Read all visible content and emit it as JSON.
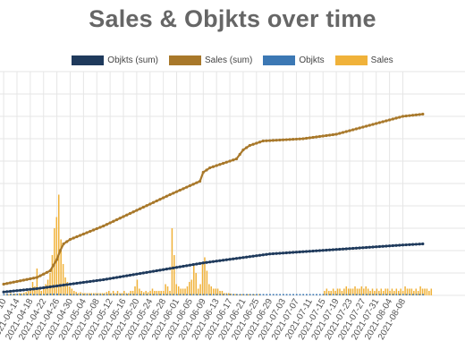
{
  "title": "Sales & Objkts over time",
  "colors": {
    "objkts_sum": "#1f3a5c",
    "sales_sum": "#a8782a",
    "objkts": "#3c78b4",
    "sales": "#f0b23a",
    "grid": "#e6e6e6",
    "tick": "#555555"
  },
  "chart_data": {
    "type": "line",
    "title": "Sales & Objkts over time",
    "legend": [
      "Objkts (sum)",
      "Sales (sum)",
      "Objkts",
      "Sales"
    ],
    "legend_position": "top-center",
    "grid": true,
    "x_start": "2021-04-10",
    "x_tick_labels": [
      "10",
      "2021-04-14",
      "2021-04-18",
      "2021-04-22",
      "2021-04-26",
      "2021-04-30",
      "2021-05-04",
      "2021-05-08",
      "2021-05-12",
      "2021-05-16",
      "2021-05-20",
      "2021-05-24",
      "2021-05-28",
      "2021-06-01",
      "2021-06-05",
      "2021-06-09",
      "2021-06-13",
      "2021-06-17",
      "2021-06-21",
      "2021-06-25",
      "2021-06-29",
      "2021-07-03",
      "2021-07-07",
      "2021-07-11",
      "2021-07-15",
      "2021-07-19",
      "2021-07-23",
      "2021-07-27",
      "2021-07-31",
      "2021-08-04",
      "2021-08-08"
    ],
    "y_range": [
      0,
      100
    ],
    "series": [
      {
        "name": "Objkts (sum)",
        "kind": "line",
        "days": [
          0,
          10,
          20,
          30,
          40,
          50,
          60,
          70,
          80,
          90,
          100,
          110,
          120,
          126
        ],
        "values": [
          1.5,
          3,
          5,
          7,
          9.5,
          12,
          14.5,
          16.5,
          18.5,
          19.5,
          20.5,
          21.5,
          22.5,
          23
        ]
      },
      {
        "name": "Sales (sum)",
        "kind": "line",
        "days": [
          0,
          10,
          14,
          16,
          17,
          18,
          20,
          30,
          40,
          50,
          59,
          60,
          62,
          70,
          72,
          74,
          78,
          90,
          100,
          110,
          120,
          126
        ],
        "values": [
          5,
          8,
          11,
          16,
          20,
          23,
          25,
          31,
          38,
          45,
          51,
          55,
          57,
          61,
          65,
          67,
          69,
          70,
          72,
          76,
          80,
          81
        ]
      },
      {
        "name": "Objkts",
        "kind": "bar",
        "values": [
          0.6,
          0.6,
          0.6,
          0.7,
          0.7,
          0.6,
          0.6,
          0.7,
          0.7,
          0.6,
          0.6,
          0.6,
          0.6,
          0.7,
          0.8,
          0.8,
          0.8,
          0.7,
          0.6,
          0.6,
          0.6,
          0.6,
          0.6,
          0.6,
          0.6,
          0.6,
          0.6,
          0.6,
          0.6,
          0.6,
          0.6,
          0.6,
          0.6,
          0.6,
          0.6,
          0.6,
          0.6,
          0.6,
          0.6,
          0.6,
          0.6,
          0.6,
          0.6,
          0.6,
          0.6,
          0.6,
          0.6,
          0.6,
          0.6,
          0.6,
          0.6,
          0.6,
          0.6,
          0.6,
          0.6,
          0.6,
          0.6,
          0.6,
          0.6,
          0.6,
          0.6,
          0.6,
          0.6,
          0.6,
          0.6,
          0.6,
          0.6,
          0.6,
          0.6,
          0.6,
          0.6,
          0.6,
          0.6,
          0.6,
          0.6,
          0.6,
          0.6,
          0.6,
          0.6,
          0.6,
          0.6,
          0.6,
          0.6,
          0.6,
          0.6,
          0.6,
          0.6,
          0.6,
          0.6,
          0.6,
          0.6,
          0.6,
          0.6,
          0.6,
          0.6,
          0.6,
          0.6,
          0.6,
          0.6,
          0.6,
          0.6,
          0.6,
          0.6,
          0.6,
          0.6,
          0.6,
          0.6,
          0.6,
          0.6,
          0.6,
          0.6,
          0.6,
          0.6,
          0.6,
          0.6,
          0.6,
          0.6,
          0.6,
          0.6,
          0.6,
          0.6,
          0.6,
          0.6,
          0.6,
          0.6,
          0.6,
          0.6
        ]
      },
      {
        "name": "Sales",
        "kind": "bar",
        "values": [
          0.3,
          0.6,
          0.4,
          1,
          0.5,
          0.7,
          0.8,
          1,
          0.9,
          1.2,
          1.5,
          2,
          3,
          6,
          4,
          12,
          3,
          2,
          4,
          5,
          7,
          10,
          18,
          30,
          35,
          45,
          25,
          14,
          8,
          6,
          4,
          3,
          2,
          1.5,
          1,
          1.4,
          1,
          1,
          1,
          1,
          1,
          1,
          1,
          1,
          1,
          1,
          1,
          1.5,
          2,
          1,
          2,
          1,
          2,
          1,
          1,
          2,
          1,
          1,
          2,
          2,
          4,
          7,
          3,
          2,
          1.4,
          2,
          1.4,
          2,
          3,
          2,
          2,
          2,
          2,
          2,
          5,
          4,
          2,
          30,
          18,
          5,
          4,
          3,
          3,
          3,
          4,
          6,
          7,
          14,
          10,
          3,
          5,
          15,
          17,
          11,
          5,
          4,
          3,
          3,
          3,
          2,
          2,
          1,
          1,
          1,
          0.8,
          0.6,
          0.6,
          0.5,
          0.4,
          0.5,
          0.5,
          0.4,
          0.5,
          0.5,
          0.5,
          0.4,
          0.5,
          0.6,
          0,
          0,
          0,
          0,
          0,
          0,
          0,
          0,
          0,
          0,
          0,
          0,
          0,
          0,
          0,
          0,
          0,
          0,
          0,
          0,
          0,
          0,
          0,
          0,
          0,
          0,
          0,
          0,
          0,
          2,
          3,
          2,
          2,
          3,
          2,
          3,
          3,
          2,
          3,
          4,
          3,
          3,
          3,
          4,
          3,
          3,
          4,
          3,
          4,
          3,
          2,
          3,
          2,
          3,
          2,
          3,
          2,
          3,
          3,
          2,
          3,
          2,
          3,
          2,
          3,
          2,
          4,
          3,
          3,
          3,
          2,
          3,
          2,
          4,
          3,
          3,
          3,
          2,
          3
        ]
      }
    ]
  }
}
